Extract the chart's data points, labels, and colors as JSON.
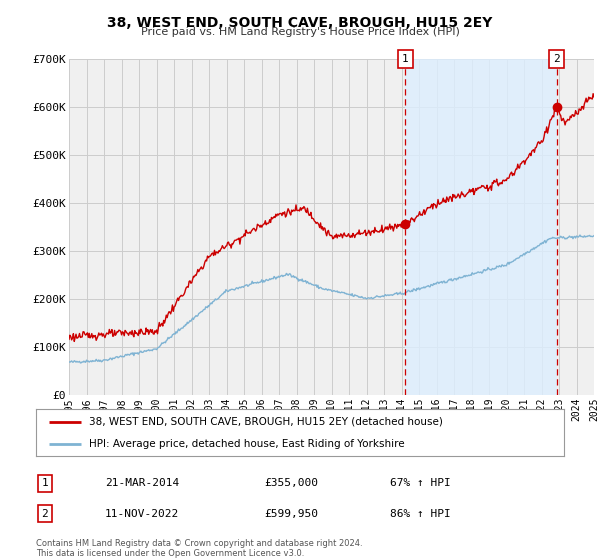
{
  "title": "38, WEST END, SOUTH CAVE, BROUGH, HU15 2EY",
  "subtitle": "Price paid vs. HM Land Registry's House Price Index (HPI)",
  "legend_line1": "38, WEST END, SOUTH CAVE, BROUGH, HU15 2EY (detached house)",
  "legend_line2": "HPI: Average price, detached house, East Riding of Yorkshire",
  "footer": "Contains HM Land Registry data © Crown copyright and database right 2024.\nThis data is licensed under the Open Government Licence v3.0.",
  "sale1_label": "1",
  "sale1_date": "21-MAR-2014",
  "sale1_price": "£355,000",
  "sale1_hpi": "67% ↑ HPI",
  "sale1_year": 2014.22,
  "sale1_value": 355000,
  "sale2_label": "2",
  "sale2_date": "11-NOV-2022",
  "sale2_price": "£599,950",
  "sale2_hpi": "86% ↑ HPI",
  "sale2_year": 2022.86,
  "sale2_value": 599950,
  "red_color": "#cc0000",
  "blue_color": "#7fb3d3",
  "shade_color": "#ddeeff",
  "grid_color": "#cccccc",
  "background_color": "#ffffff",
  "plot_bg_color": "#f0f0f0",
  "ylim": [
    0,
    700000
  ],
  "xlim_start": 1995,
  "xlim_end": 2025,
  "yticks": [
    0,
    100000,
    200000,
    300000,
    400000,
    500000,
    600000,
    700000
  ],
  "ytick_labels": [
    "£0",
    "£100K",
    "£200K",
    "£300K",
    "£400K",
    "£500K",
    "£600K",
    "£700K"
  ],
  "xticks": [
    1995,
    1996,
    1997,
    1998,
    1999,
    2000,
    2001,
    2002,
    2003,
    2004,
    2005,
    2006,
    2007,
    2008,
    2009,
    2010,
    2011,
    2012,
    2013,
    2014,
    2015,
    2016,
    2017,
    2018,
    2019,
    2020,
    2021,
    2022,
    2023,
    2024,
    2025
  ]
}
